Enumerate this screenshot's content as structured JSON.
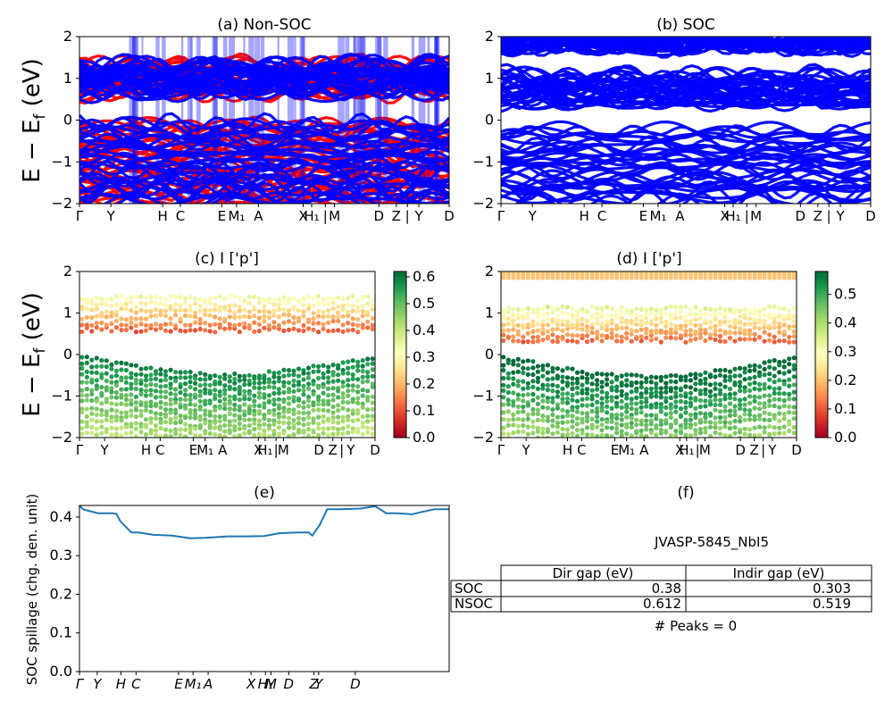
{
  "chart_data": [
    {
      "panel": "a",
      "type": "line",
      "title": "(a) Non-SOC",
      "ylabel": "E − E_f (eV)",
      "ylim": [
        -2,
        2
      ],
      "yticks": [
        "−2",
        "−1",
        "0",
        "1",
        "2"
      ],
      "xtick_labels": [
        "Γ",
        "Y",
        "H",
        "C",
        "E",
        "M₁",
        "A",
        "X",
        "H₁",
        "|",
        "M",
        "D",
        "Z",
        "|",
        "Y",
        "D"
      ],
      "series": [
        {
          "color": "#ff0000",
          "bands": [
            [
              0.65,
              1.35
            ],
            [
              -2.0,
              -0.05
            ]
          ]
        },
        {
          "color": "#0000ff",
          "bands": [
            [
              0.65,
              1.35
            ],
            [
              -2.0,
              -0.05
            ]
          ]
        }
      ]
    },
    {
      "panel": "b",
      "type": "line",
      "title": "(b) SOC",
      "ylim": [
        -2,
        2
      ],
      "yticks": [
        "−2",
        "−1",
        "0",
        "1",
        "2"
      ],
      "xtick_labels": [
        "Γ",
        "Y",
        "H",
        "C",
        "E",
        "M₁",
        "A",
        "X",
        "H₁",
        "|",
        "M",
        "D",
        "Z",
        "|",
        "Y",
        "D"
      ],
      "series": [
        {
          "color": "#0000ff",
          "bands": [
            [
              0.35,
              1.1
            ],
            [
              1.75,
              2.0
            ],
            [
              -2.0,
              -0.2
            ]
          ]
        }
      ]
    },
    {
      "panel": "c",
      "type": "scatter",
      "title": "(c)  I ['p']",
      "ylabel": "E − E_f (eV)",
      "ylim": [
        -2,
        2
      ],
      "yticks": [
        "−2",
        "−1",
        "0",
        "1",
        "2"
      ],
      "xtick_labels": [
        "Γ",
        "Y",
        "H",
        "C",
        "E",
        "M₁",
        "A",
        "X",
        "H₁",
        "|",
        "M",
        "D",
        "Z",
        "|",
        "Y",
        "D"
      ],
      "colorbar": {
        "cmap": "RdYlGn",
        "range": [
          0,
          0.62
        ],
        "ticks": [
          "0.0",
          "0.1",
          "0.2",
          "0.3",
          "0.4",
          "0.5",
          "0.6"
        ]
      }
    },
    {
      "panel": "d",
      "type": "scatter",
      "title": "(d) I ['p']",
      "ylim": [
        -2,
        2
      ],
      "yticks": [
        "−2",
        "−1",
        "0",
        "1",
        "2"
      ],
      "xtick_labels": [
        "Γ",
        "Y",
        "H",
        "C",
        "E",
        "M₁",
        "A",
        "X",
        "H₁",
        "|",
        "M",
        "D",
        "Z",
        "|",
        "Y",
        "D"
      ],
      "colorbar": {
        "cmap": "RdYlGn",
        "range": [
          0,
          0.58
        ],
        "ticks": [
          "0.0",
          "0.1",
          "0.2",
          "0.3",
          "0.4",
          "0.5"
        ]
      }
    },
    {
      "panel": "e",
      "type": "line",
      "title": "(e)",
      "ylabel": "SOC spillage (chg. den. unit)",
      "ylim": [
        0,
        0.43
      ],
      "yticks": [
        "0.0",
        "0.1",
        "0.2",
        "0.3",
        "0.4"
      ],
      "xtick_labels": [
        "Γ",
        "Y",
        "H",
        "C",
        "E",
        "M₁",
        "A",
        "X",
        "H₁",
        "M",
        "D",
        "Z",
        "Y",
        "D"
      ],
      "x": [
        0,
        0.01,
        0.05,
        0.09,
        0.1,
        0.11,
        0.14,
        0.16,
        0.2,
        0.25,
        0.28,
        0.3,
        0.34,
        0.4,
        0.45,
        0.5,
        0.54,
        0.59,
        0.62,
        0.63,
        0.65,
        0.67,
        0.7,
        0.76,
        0.8,
        0.83,
        0.84,
        0.86,
        0.9,
        0.92,
        0.96,
        1.0
      ],
      "values": [
        0.43,
        0.42,
        0.41,
        0.41,
        0.408,
        0.39,
        0.36,
        0.36,
        0.354,
        0.352,
        0.348,
        0.345,
        0.346,
        0.35,
        0.35,
        0.351,
        0.358,
        0.36,
        0.36,
        0.352,
        0.38,
        0.42,
        0.42,
        0.422,
        0.428,
        0.41,
        0.41,
        0.41,
        0.407,
        0.412,
        0.42,
        0.42
      ],
      "color": "#1f77b4"
    }
  ],
  "table": {
    "title": "(f)",
    "name": "JVASP-5845_NbI5",
    "columns": [
      "Dir gap (eV)",
      "Indir gap (eV)"
    ],
    "rows": [
      {
        "label": "SOC",
        "dir": "0.38",
        "indir": "0.303"
      },
      {
        "label": "NSOC",
        "dir": "0.612",
        "indir": "0.519"
      }
    ],
    "peaks": "# Peaks = 0"
  }
}
